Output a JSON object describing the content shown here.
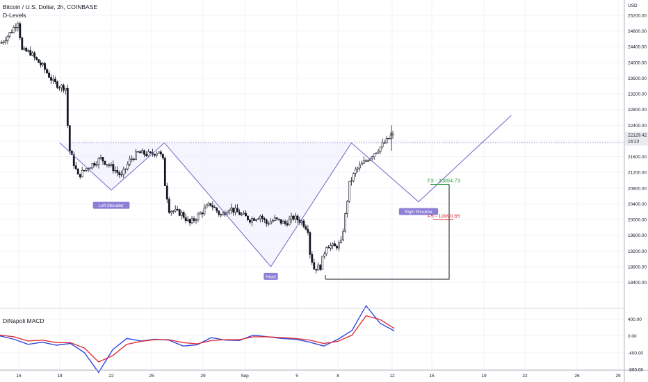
{
  "header": {
    "title": "Bitcoin / U.S. Dollar, 2h, COINBASE",
    "indicator": "D-Levels"
  },
  "colors": {
    "grid": "#f0f3fa",
    "candle": "#131722",
    "pattern": "#7e6fd0",
    "f3": "#2e9c43",
    "f5": "#e0313b",
    "macd": "#2f47e0",
    "signal": "#e0313b",
    "label_bg": "#8c7fd6"
  },
  "chart_data": [
    {
      "type": "candlestick",
      "title": "",
      "currency": "USD",
      "x_ticks": [
        "15",
        "18",
        "22",
        "25",
        "29",
        "Sep",
        "5",
        "8",
        "12",
        "15",
        "19",
        "22",
        "26",
        "29"
      ],
      "y_ticks": [
        "25200.00",
        "24800.00",
        "24400.00",
        "24000.00",
        "23600.00",
        "23200.00",
        "22800.00",
        "22400.00",
        "22000.00",
        "21600.00",
        "21200.00",
        "20800.00",
        "20400.00",
        "20000.00",
        "19600.00",
        "19200.00",
        "18800.00",
        "18400.00"
      ],
      "ylim": [
        18240,
        25390
      ],
      "grid": true,
      "last_price": "22129.42",
      "countdown": "16:23",
      "price_line": 21950,
      "close_path": [
        {
          "bar": 0,
          "close": 24500
        },
        {
          "bar": 5,
          "close": 24800
        },
        {
          "bar": 8,
          "close": 25050
        },
        {
          "bar": 10,
          "close": 24300
        },
        {
          "bar": 14,
          "close": 24250
        },
        {
          "bar": 17,
          "close": 24050
        },
        {
          "bar": 20,
          "close": 23900
        },
        {
          "bar": 25,
          "close": 23500
        },
        {
          "bar": 28,
          "close": 23400
        },
        {
          "bar": 31,
          "close": 23350
        },
        {
          "bar": 32,
          "close": 22400
        },
        {
          "bar": 33,
          "close": 21750
        },
        {
          "bar": 37,
          "close": 21100
        },
        {
          "bar": 41,
          "close": 21300
        },
        {
          "bar": 48,
          "close": 21550
        },
        {
          "bar": 54,
          "close": 21300
        },
        {
          "bar": 58,
          "close": 21100
        },
        {
          "bar": 62,
          "close": 21500
        },
        {
          "bar": 66,
          "close": 21700
        },
        {
          "bar": 72,
          "close": 21650
        },
        {
          "bar": 76,
          "close": 21750
        },
        {
          "bar": 78,
          "close": 21500
        },
        {
          "bar": 79,
          "close": 20900
        },
        {
          "bar": 81,
          "close": 20250
        },
        {
          "bar": 87,
          "close": 20150
        },
        {
          "bar": 91,
          "close": 19900
        },
        {
          "bar": 95,
          "close": 20100
        },
        {
          "bar": 101,
          "close": 20400
        },
        {
          "bar": 106,
          "close": 20100
        },
        {
          "bar": 110,
          "close": 20300
        },
        {
          "bar": 115,
          "close": 20150
        },
        {
          "bar": 120,
          "close": 20000
        },
        {
          "bar": 125,
          "close": 20100
        },
        {
          "bar": 128,
          "close": 19900
        },
        {
          "bar": 132,
          "close": 20000
        },
        {
          "bar": 137,
          "close": 19900
        },
        {
          "bar": 141,
          "close": 20050
        },
        {
          "bar": 145,
          "close": 19950
        },
        {
          "bar": 148,
          "close": 19750
        },
        {
          "bar": 149,
          "close": 19150
        },
        {
          "bar": 151,
          "close": 18750
        },
        {
          "bar": 154,
          "close": 18800
        },
        {
          "bar": 157,
          "close": 19350
        },
        {
          "bar": 161,
          "close": 19300
        },
        {
          "bar": 164,
          "close": 19400
        },
        {
          "bar": 166,
          "close": 20100
        },
        {
          "bar": 168,
          "close": 20900
        },
        {
          "bar": 171,
          "close": 21250
        },
        {
          "bar": 175,
          "close": 21450
        },
        {
          "bar": 180,
          "close": 21700
        },
        {
          "bar": 184,
          "close": 21900
        },
        {
          "bar": 186,
          "close": 22000
        },
        {
          "bar": 188,
          "close": 22129
        }
      ],
      "pattern": {
        "points": [
          {
            "date": "Aug 18",
            "price": 21950
          },
          {
            "date": "Aug 22",
            "price": 20750
          },
          {
            "date": "Aug 26",
            "price": 21950
          },
          {
            "date": "Sep 3",
            "price": 18800
          },
          {
            "date": "Sep 9",
            "price": 21950
          },
          {
            "date": "Sep 14",
            "price": 20450
          },
          {
            "date": "Sep 21",
            "price": 22650
          }
        ],
        "labels": [
          "Left Shoulder",
          "Head",
          "Right Shoulder"
        ]
      },
      "fib_levels": [
        {
          "label": "F3 - 20894.73",
          "value": 20894.73
        },
        {
          "label": "F5 - 19990.65",
          "value": 19990.65
        }
      ],
      "box": {
        "from_price": 20894.73,
        "to_price": 18480
      }
    },
    {
      "type": "line",
      "title": "DiNapoli MACD",
      "y_ticks": [
        "400.00",
        "0.00",
        "-400.00",
        "-800.00"
      ],
      "ylim": [
        -880,
        520
      ],
      "series": [
        {
          "color": "#2f47e0",
          "values": [
            0,
            -80,
            -200,
            -150,
            -220,
            -180,
            -400,
            -870,
            -330,
            -60,
            -120,
            -80,
            -100,
            -240,
            -210,
            -40,
            -100,
            -110,
            20,
            -20,
            -60,
            -80,
            -150,
            -240,
            -80,
            130,
            720,
            300,
            120
          ]
        },
        {
          "color": "#e0313b",
          "values": [
            20,
            -20,
            -120,
            -100,
            -160,
            -160,
            -290,
            -620,
            -470,
            -200,
            -130,
            -90,
            -90,
            -160,
            -190,
            -110,
            -90,
            -90,
            -20,
            -20,
            -40,
            -60,
            -100,
            -180,
            -130,
            20,
            480,
            390,
            180
          ]
        }
      ]
    }
  ]
}
